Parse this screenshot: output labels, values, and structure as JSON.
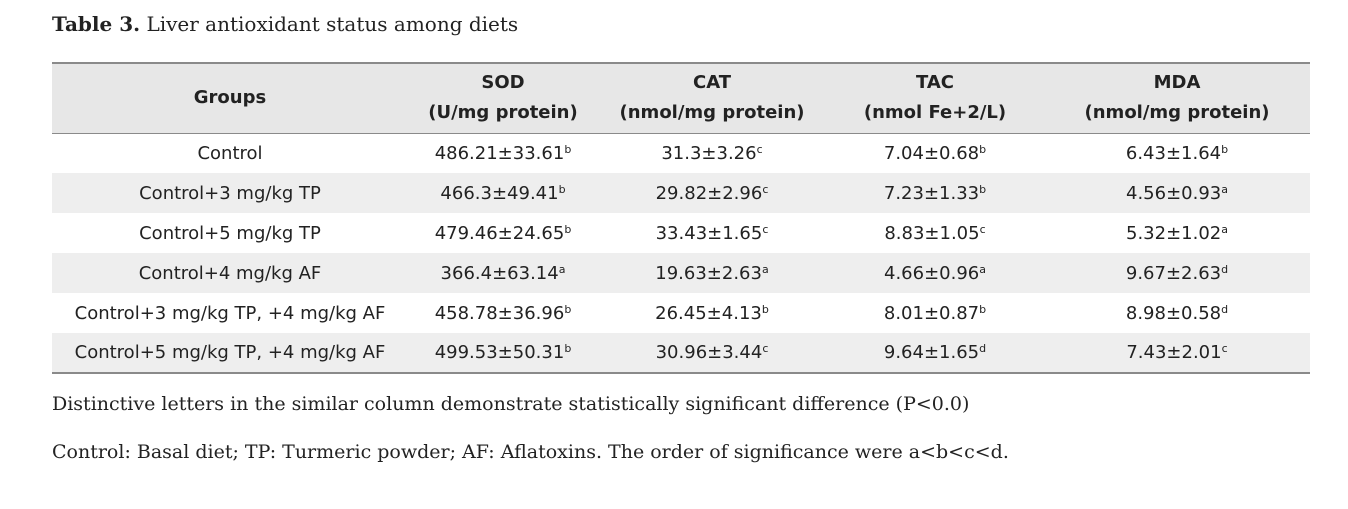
{
  "caption": {
    "number": "Table 3.",
    "title": "Liver antioxidant status among diets"
  },
  "table": {
    "header": {
      "groups": "Groups",
      "sod": {
        "name": "SOD",
        "unit": "(U/mg protein)"
      },
      "cat": {
        "name": "CAT",
        "unit": "(nmol/mg protein)"
      },
      "tac": {
        "name": "TAC",
        "unit": "(nmol Fe+2/L)"
      },
      "mda": {
        "name": "MDA",
        "unit": "(nmol/mg protein)"
      }
    },
    "rows": [
      {
        "group": "Control",
        "sod": {
          "v": "486.21±33.61",
          "s": "b"
        },
        "cat": {
          "v": "31.3±3.26",
          "s": "c"
        },
        "tac": {
          "v": "7.04±0.68",
          "s": "b"
        },
        "mda": {
          "v": "6.43±1.64",
          "s": "b"
        }
      },
      {
        "group": "Control+3 mg/kg TP",
        "sod": {
          "v": "466.3±49.41",
          "s": "b"
        },
        "cat": {
          "v": "29.82±2.96",
          "s": "c"
        },
        "tac": {
          "v": "7.23±1.33",
          "s": "b"
        },
        "mda": {
          "v": "4.56±0.93",
          "s": "a"
        }
      },
      {
        "group": "Control+5 mg/kg TP",
        "sod": {
          "v": "479.46±24.65",
          "s": "b"
        },
        "cat": {
          "v": "33.43±1.65",
          "s": "c"
        },
        "tac": {
          "v": "8.83±1.05",
          "s": "c"
        },
        "mda": {
          "v": "5.32±1.02",
          "s": "a"
        }
      },
      {
        "group": "Control+4 mg/kg AF",
        "sod": {
          "v": "366.4±63.14",
          "s": "a"
        },
        "cat": {
          "v": "19.63±2.63",
          "s": "a"
        },
        "tac": {
          "v": "4.66±0.96",
          "s": "a"
        },
        "mda": {
          "v": "9.67±2.63",
          "s": "d"
        }
      },
      {
        "group": "Control+3 mg/kg TP, +4 mg/kg AF",
        "sod": {
          "v": "458.78±36.96",
          "s": "b"
        },
        "cat": {
          "v": "26.45±4.13",
          "s": "b"
        },
        "tac": {
          "v": "8.01±0.87",
          "s": "b"
        },
        "mda": {
          "v": "8.98±0.58",
          "s": "d"
        }
      },
      {
        "group": "Control+5 mg/kg TP, +4 mg/kg AF",
        "sod": {
          "v": "499.53±50.31",
          "s": "b"
        },
        "cat": {
          "v": "30.96±3.44",
          "s": "c"
        },
        "tac": {
          "v": "9.64±1.65",
          "s": "d"
        },
        "mda": {
          "v": "7.43±2.01",
          "s": "c"
        }
      }
    ]
  },
  "notes": {
    "line1": "Distinctive letters in the similar column demonstrate statistically significant difference (P<0.0)",
    "line2": "Control: Basal diet; TP: Turmeric powder; AF: Aflatoxins. The order of significance were a<b<c<d."
  }
}
